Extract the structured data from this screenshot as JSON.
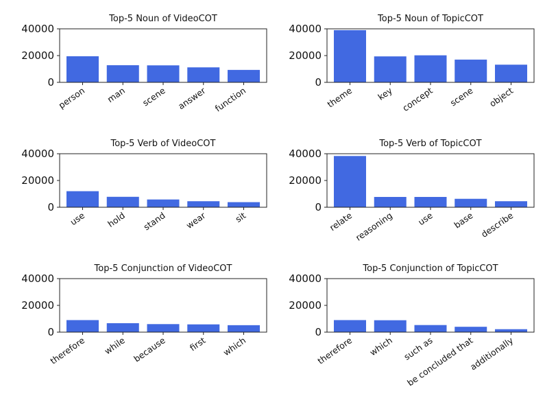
{
  "chart_data": [
    {
      "type": "bar",
      "title": "Top-5 Noun of VideoCOT",
      "categories": [
        "person",
        "man",
        "scene",
        "answer",
        "function"
      ],
      "values": [
        19500,
        12800,
        12700,
        11200,
        9300
      ],
      "yticks": [
        "0",
        "20000",
        "40000"
      ],
      "ylim": [
        0,
        40000
      ],
      "color": "#4169e1"
    },
    {
      "type": "bar",
      "title": "Top-5 Noun of TopicCOT",
      "categories": [
        "theme",
        "key",
        "concept",
        "scene",
        "object"
      ],
      "values": [
        39000,
        19400,
        20200,
        17000,
        13200
      ],
      "yticks": [
        "0",
        "20000",
        "40000"
      ],
      "ylim": [
        0,
        40000
      ],
      "color": "#4169e1"
    },
    {
      "type": "bar",
      "title": "Top-5 Verb of VideoCOT",
      "categories": [
        "use",
        "hold",
        "stand",
        "wear",
        "sit"
      ],
      "values": [
        12000,
        7800,
        5800,
        4500,
        3800
      ],
      "yticks": [
        "0",
        "20000",
        "40000"
      ],
      "ylim": [
        0,
        40000
      ],
      "color": "#4169e1"
    },
    {
      "type": "bar",
      "title": "Top-5 Verb of TopicCOT",
      "categories": [
        "relate",
        "reasoning",
        "use",
        "base",
        "describe"
      ],
      "values": [
        38300,
        7700,
        7700,
        6300,
        4500
      ],
      "yticks": [
        "0",
        "20000",
        "40000"
      ],
      "ylim": [
        0,
        40000
      ],
      "color": "#4169e1"
    },
    {
      "type": "bar",
      "title": "Top-5 Conjunction of VideoCOT",
      "categories": [
        "therefore",
        "while",
        "because",
        "first",
        "which"
      ],
      "values": [
        9000,
        6700,
        6000,
        5800,
        5200
      ],
      "yticks": [
        "0",
        "20000",
        "40000"
      ],
      "ylim": [
        0,
        40000
      ],
      "color": "#4169e1"
    },
    {
      "type": "bar",
      "title": "Top-5 Conjunction of TopicCOT",
      "categories": [
        "therefore",
        "which",
        "such as",
        "be concluded that",
        "additionally"
      ],
      "values": [
        9000,
        8900,
        5300,
        4000,
        2200
      ],
      "yticks": [
        "0",
        "20000",
        "40000"
      ],
      "ylim": [
        0,
        40000
      ],
      "color": "#4169e1"
    }
  ]
}
